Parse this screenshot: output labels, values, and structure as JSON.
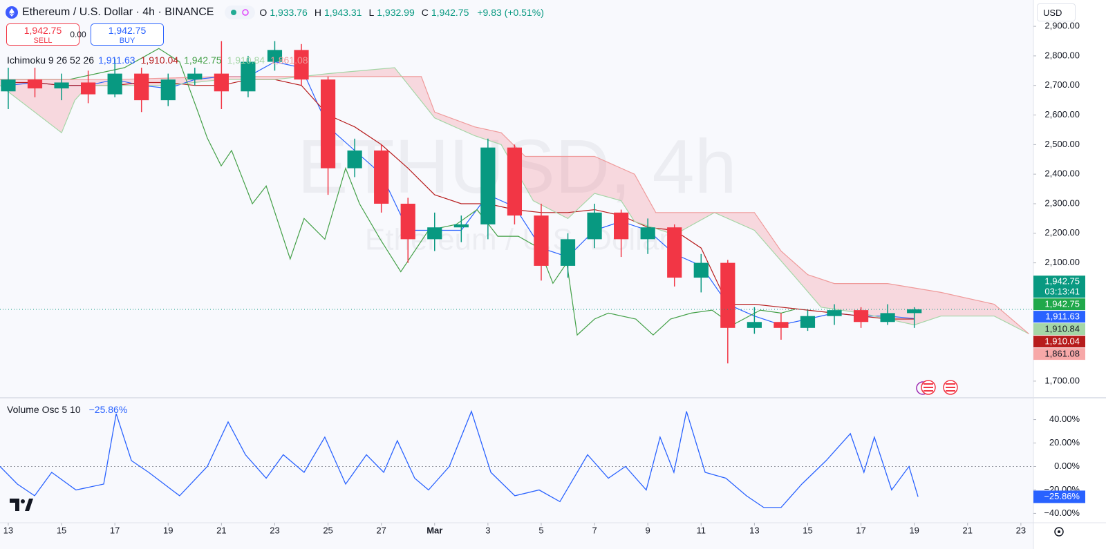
{
  "header": {
    "symbol": "Ethereum / U.S. Dollar · 4h · BINANCE",
    "ohlc": [
      {
        "key": "O",
        "label": "1,933.76"
      },
      {
        "key": "H",
        "label": "1,943.31"
      },
      {
        "key": "L",
        "label": "1,932.99"
      },
      {
        "key": "C",
        "label": "1,942.75"
      }
    ],
    "change": "+9.83 (+0.51%)",
    "sell": {
      "price": "1,942.75",
      "label": "SELL"
    },
    "spread": "0.00",
    "buy": {
      "price": "1,942.75",
      "label": "BUY"
    },
    "currency": "USD",
    "watermark": "ETHUSD, 4h",
    "watermark_sub": "Ethereum / U.S. Dollar"
  },
  "chart_data": [
    {
      "type": "candlestick",
      "indicator": {
        "label": "Ichimoku 9 26 52 26",
        "values": [
          {
            "label": "1,911.63",
            "color": "#2962ff"
          },
          {
            "label": "1,910.04",
            "color": "#b71c1c"
          },
          {
            "label": "1,942.75",
            "color": "#43a047"
          },
          {
            "label": "1,910.84",
            "color": "#a5d6a7"
          },
          {
            "label": "1,861.08",
            "color": "#ef9a9a"
          }
        ]
      },
      "x": [
        0,
        1,
        2,
        3,
        4,
        5,
        6,
        7,
        8,
        9,
        10,
        11,
        12,
        13,
        14,
        15,
        16,
        17,
        18,
        19,
        20,
        21,
        22,
        23,
        24,
        25,
        26,
        27,
        28,
        29,
        30,
        31,
        32,
        33,
        34
      ],
      "open": [
        2680,
        2720,
        2690,
        2710,
        2670,
        2740,
        2650,
        2720,
        2740,
        2680,
        2780,
        2820,
        2720,
        2420,
        2480,
        2300,
        2180,
        2220,
        2230,
        2490,
        2260,
        2090,
        2180,
        2270,
        2180,
        2220,
        2050,
        2100,
        1880,
        1900,
        1880,
        1920,
        1940,
        1900,
        1930
      ],
      "high": [
        2760,
        2760,
        2740,
        2750,
        2790,
        2760,
        2740,
        2760,
        2850,
        2800,
        2850,
        2840,
        2730,
        2520,
        2500,
        2320,
        2270,
        2260,
        2520,
        2500,
        2300,
        2200,
        2300,
        2280,
        2250,
        2230,
        2130,
        2110,
        1950,
        1930,
        1940,
        1960,
        1950,
        1960,
        1950
      ],
      "low": [
        2620,
        2660,
        2650,
        2640,
        2660,
        2610,
        2630,
        2700,
        2620,
        2660,
        2750,
        2700,
        2330,
        2390,
        2270,
        2100,
        2140,
        2170,
        2180,
        2230,
        2040,
        2050,
        2150,
        2120,
        2130,
        2020,
        2000,
        1760,
        1860,
        1840,
        1870,
        1890,
        1880,
        1890,
        1880
      ],
      "close": [
        2720,
        2690,
        2710,
        2670,
        2740,
        2650,
        2720,
        2740,
        2680,
        2780,
        2820,
        2720,
        2420,
        2480,
        2300,
        2180,
        2220,
        2230,
        2490,
        2260,
        2090,
        2180,
        2270,
        2180,
        2220,
        2050,
        2100,
        1880,
        1900,
        1880,
        1920,
        1940,
        1900,
        1930,
        1942.75
      ],
      "up_color": "#089981",
      "down_color": "#f23645",
      "series": [
        {
          "color": "#2962ff",
          "values": [
            2700,
            2710,
            2700,
            2700,
            2720,
            2700,
            2690,
            2720,
            2730,
            2730,
            2780,
            2760,
            2560,
            2480,
            2400,
            2210,
            2210,
            2210,
            2330,
            2290,
            2150,
            2120,
            2210,
            2240,
            2210,
            2130,
            2090,
            1960,
            1920,
            1890,
            1910,
            1930,
            1920,
            1920,
            1911.63
          ]
        },
        {
          "color": "#b71c1c",
          "values": [
            2710,
            2710,
            2700,
            2700,
            2700,
            2710,
            2710,
            2700,
            2700,
            2720,
            2720,
            2700,
            2600,
            2560,
            2500,
            2420,
            2330,
            2300,
            2300,
            2280,
            2270,
            2270,
            2280,
            2260,
            2220,
            2210,
            2150,
            1960,
            1960,
            1950,
            1940,
            1930,
            1920,
            1910,
            1910.04
          ]
        },
        {
          "color": "#43a047",
          "x": [
            -0.31,
            2.28,
            4.36,
            5.65,
            6.43,
            7.08,
            7.47,
            7.99,
            8.38,
            9.16,
            9.68,
            10.58,
            11.1,
            11.88,
            12.66,
            13.18,
            13.96,
            14.73,
            15.77,
            16.81,
            17.59,
            18.37,
            19.14,
            19.92,
            20.44,
            20.96,
            21.35,
            22.0,
            22.52,
            23.55,
            24.2,
            24.85,
            25.63,
            26.41,
            27.18,
            28.22,
            29.0,
            29.52
          ],
          "values": [
            2720,
            2720,
            2760,
            2825,
            2780,
            2620,
            2522,
            2428,
            2480,
            2300,
            2360,
            2113,
            2250,
            2180,
            2420,
            2300,
            2180,
            2070,
            2210,
            2230,
            2280,
            2190,
            2190,
            2150,
            2031,
            2100,
            1856,
            1910,
            1930,
            1910,
            1856,
            1910,
            1930,
            1940,
            1890,
            1940,
            1930,
            1942.75
          ]
        },
        {
          "color": "#a5d6a7",
          "x": [
            -0.31,
            2,
            2.5,
            3,
            6,
            8,
            10,
            12,
            14.5,
            16,
            17.5,
            18.5,
            19.7,
            21,
            22,
            23,
            23.5,
            25,
            26.5,
            28,
            29.5,
            30.5,
            32,
            34,
            35,
            37,
            38.3
          ],
          "values": [
            2700,
            2540,
            2650,
            2700,
            2700,
            2720,
            2720,
            2740,
            2760,
            2590,
            2530,
            2500,
            2310,
            2250,
            2335,
            2310,
            2240,
            2195,
            2270,
            2210,
            2055,
            1950,
            1930,
            1890,
            1920,
            1920,
            1860
          ]
        },
        {
          "color": "#ef9a9a",
          "x": [
            -0.31,
            4,
            8,
            12,
            15.5,
            16,
            17.5,
            18.5,
            19.4,
            22,
            23.5,
            24.3,
            28,
            29,
            30,
            31,
            33,
            35,
            37,
            38.3
          ],
          "values": [
            2720,
            2720,
            2730,
            2730,
            2730,
            2610,
            2560,
            2540,
            2460,
            2460,
            2400,
            2270,
            2270,
            2140,
            2060,
            2030,
            2030,
            2000,
            1960,
            1860
          ]
        }
      ],
      "cloud_fill": "rgba(242,54,69,0.17)",
      "xlim": [
        -0.31,
        38.47
      ],
      "ylim": [
        1646,
        2989
      ],
      "yticks": [
        {
          "value": 2900,
          "label": "2,900.00"
        },
        {
          "value": 2800,
          "label": "2,800.00"
        },
        {
          "value": 2700,
          "label": "2,700.00"
        },
        {
          "value": 2600,
          "label": "2,600.00"
        },
        {
          "value": 2500,
          "label": "2,500.00"
        },
        {
          "value": 2400,
          "label": "2,400.00"
        },
        {
          "value": 2300,
          "label": "2,300.00"
        },
        {
          "value": 2200,
          "label": "2,200.00"
        },
        {
          "value": 2100,
          "label": "2,100.00"
        },
        {
          "value": 1700,
          "label": "1,700.00"
        }
      ],
      "price_tags": [
        {
          "value": 1942.75,
          "label": "1,942.75",
          "sub": "03:13:41",
          "color": "#089981"
        },
        {
          "value": 1942.75,
          "label": "1,942.75",
          "color": "#1fa84a"
        },
        {
          "value": 1911.63,
          "label": "1,911.63",
          "color": "#2962ff"
        },
        {
          "value": 1910.84,
          "label": "1,910.84",
          "color": "#a5d6a7"
        },
        {
          "value": 1910.04,
          "label": "1,910.04",
          "color": "#b71c1c"
        },
        {
          "value": 1861.08,
          "label": "1,861.08",
          "color": "#f7a8a8"
        }
      ]
    },
    {
      "type": "line",
      "title": "Volume Osc 5 10",
      "value_label": "−25.86%",
      "color": "#2962ff",
      "x": [
        -0.31,
        0.34,
        0.99,
        1.63,
        2.54,
        3.58,
        4.05,
        4.62,
        5.27,
        6.43,
        7.47,
        8.25,
        8.9,
        9.68,
        10.32,
        11.1,
        11.88,
        12.66,
        13.44,
        14.09,
        14.6,
        15.25,
        15.77,
        16.55,
        17.38,
        18.11,
        19.01,
        19.92,
        20.7,
        21.74,
        22.52,
        23.16,
        23.94,
        24.46,
        24.98,
        25.45,
        26.15,
        26.93,
        27.7,
        28.35,
        29.0,
        29.78,
        30.69,
        31.6,
        32.11,
        32.5,
        33.15,
        33.8,
        34.14
      ],
      "values": [
        0,
        -15,
        -25,
        -5,
        -20,
        -15,
        45,
        5,
        -5,
        -25,
        0,
        38,
        10,
        -10,
        10,
        -5,
        25,
        -15,
        10,
        -5,
        22,
        -10,
        -20,
        0,
        47,
        -5,
        -25,
        -20,
        -30,
        10,
        -10,
        0,
        -20,
        25,
        -5,
        47,
        -5,
        -10,
        -25,
        -35,
        -35,
        -15,
        5,
        28,
        -5,
        25,
        -20,
        0,
        -25.86
      ],
      "xlim": [
        -0.31,
        38.47
      ],
      "ylim": [
        -48,
        58
      ],
      "yticks": [
        {
          "value": 40,
          "label": "40.00%"
        },
        {
          "value": 20,
          "label": "20.00%"
        },
        {
          "value": 0,
          "label": "0.00%"
        },
        {
          "value": -20,
          "label": "−20.00%"
        },
        {
          "value": -40,
          "label": "−40.00%"
        }
      ],
      "xticks": [
        {
          "value": 0,
          "label": "13"
        },
        {
          "value": 2,
          "label": "15"
        },
        {
          "value": 4,
          "label": "17"
        },
        {
          "value": 6,
          "label": "19"
        },
        {
          "value": 8,
          "label": "21"
        },
        {
          "value": 10,
          "label": "23"
        },
        {
          "value": 12,
          "label": "25"
        },
        {
          "value": 14,
          "label": "27"
        },
        {
          "value": 16,
          "label": "Mar"
        },
        {
          "value": 18,
          "label": "3"
        },
        {
          "value": 20,
          "label": "5"
        },
        {
          "value": 22,
          "label": "7"
        },
        {
          "value": 24,
          "label": "9"
        },
        {
          "value": 26,
          "label": "11"
        },
        {
          "value": 28,
          "label": "13"
        },
        {
          "value": 30,
          "label": "15"
        },
        {
          "value": 32,
          "label": "17"
        },
        {
          "value": 34,
          "label": "19"
        },
        {
          "value": 36,
          "label": "21"
        },
        {
          "value": 38,
          "label": "23"
        }
      ],
      "price_tags": [
        {
          "value": -25.86,
          "label": "−25.86%",
          "color": "#2962ff"
        }
      ]
    }
  ]
}
